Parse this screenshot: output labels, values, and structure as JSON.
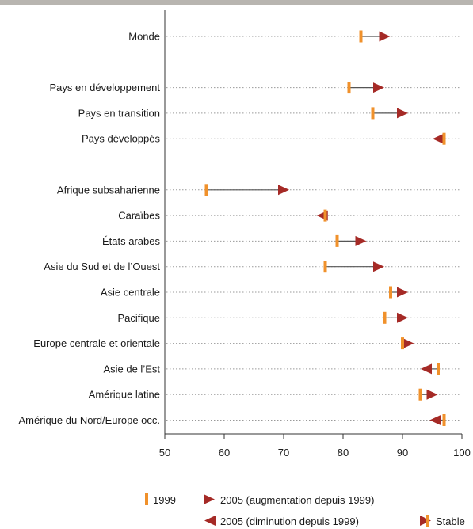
{
  "chart_data": {
    "type": "dot-arrow",
    "title": "",
    "xlabel": "",
    "ylabel": "",
    "xlim": [
      50,
      100
    ],
    "xticks": [
      50,
      60,
      70,
      80,
      90,
      100
    ],
    "grid": false,
    "legend_position": "bottom",
    "categories": [
      "Monde",
      "Pays en développement",
      "Pays en transition",
      "Pays développés",
      "Afrique subsaharienne",
      "Caraïbes",
      "États arabes",
      "Asie du Sud et de l’Ouest",
      "Asie centrale",
      "Pacifique",
      "Europe centrale et orientale",
      "Asie de l’Est",
      "Amérique latine",
      "Amérique du Nord/Europe occ."
    ],
    "groups": [
      [
        0
      ],
      [
        1,
        2,
        3
      ],
      [
        4,
        5,
        6,
        7,
        8,
        9,
        10,
        11,
        12,
        13
      ]
    ],
    "series": [
      {
        "name": "1999",
        "values": [
          83,
          81,
          85,
          97,
          57,
          77,
          79,
          77,
          88,
          87,
          90,
          96,
          93,
          97
        ]
      },
      {
        "name": "2005",
        "values": [
          87,
          86,
          90,
          96,
          70,
          76.5,
          83,
          86,
          90,
          90,
          91,
          94,
          95,
          95.5
        ]
      }
    ],
    "legend": {
      "s1999": "1999",
      "increase": "2005 (augmentation depuis 1999)",
      "decrease": "2005 (diminution depuis 1999)",
      "stable": "Stable"
    },
    "colors": {
      "marker_1999": "#f0912b",
      "marker_2005": "#a52a26",
      "connector": "#555555",
      "dotted": "#999999",
      "axis": "#333333",
      "top_rule": "#b8b5b0"
    }
  }
}
